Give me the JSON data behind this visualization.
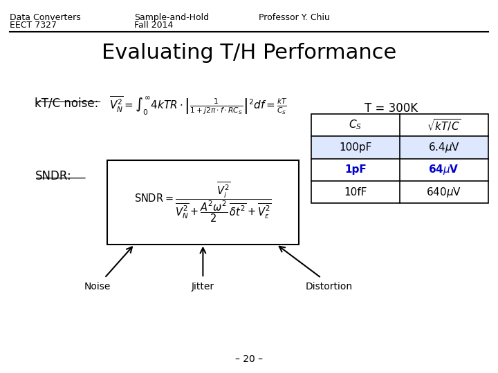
{
  "header_left1": "Data Converters",
  "header_left2": "EECT 7327",
  "header_center1": "Sample-and-Hold",
  "header_center2": "Fall 2014",
  "header_right1": "Professor Y. Chiu",
  "title": "Evaluating T/H Performance",
  "label_ktc": "kT/C noise:",
  "label_sndr": "SNDR:",
  "temp_label": "T = 300K",
  "row2_color": "#0000cc",
  "noise_label": "Noise",
  "jitter_label": "Jitter",
  "distortion_label": "Distortion",
  "page_num": "– 20 –",
  "bg_color": "#ffffff",
  "text_color": "#000000",
  "header_fontsize": 9,
  "title_fontsize": 22,
  "body_fontsize": 12,
  "small_fontsize": 10
}
